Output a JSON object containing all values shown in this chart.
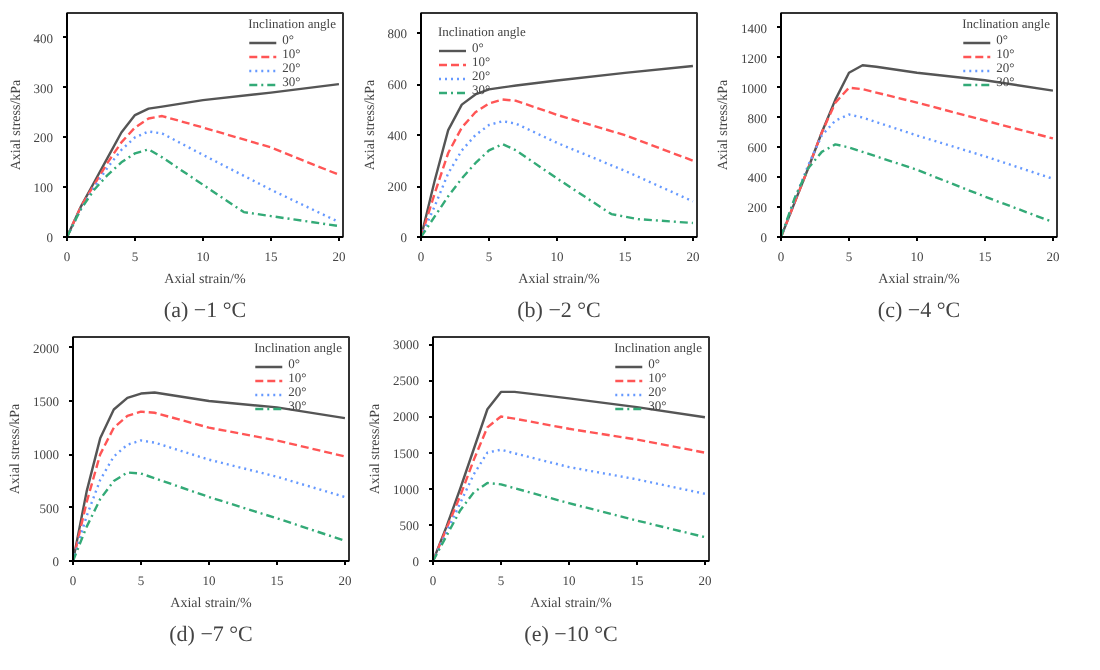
{
  "chart_data": [
    {
      "type": "line",
      "title": "(a) −1 °C",
      "xlabel": "Axial strain/%",
      "ylabel": "Axial stress/kPa",
      "legend_title": "Inclination angle",
      "legend": "top right",
      "grid": false,
      "xlim": [
        0,
        20.3
      ],
      "xticks": [
        0,
        5,
        10,
        15,
        20
      ],
      "ylim": [
        0,
        450
      ],
      "yticks": [
        0,
        100,
        200,
        300,
        400
      ],
      "series": [
        {
          "name": "0°",
          "color": "#555555",
          "line_style": "solid",
          "x": [
            0,
            1,
            2,
            3,
            4,
            5,
            6,
            7,
            10,
            15,
            20
          ],
          "values": [
            0,
            60,
            110,
            160,
            210,
            245,
            258,
            262,
            275,
            290,
            307
          ]
        },
        {
          "name": "10°",
          "color": "#ff5555",
          "line_style": "dashed",
          "x": [
            0,
            1,
            2,
            3,
            4,
            5,
            6,
            7,
            10,
            15,
            20
          ],
          "values": [
            0,
            60,
            105,
            150,
            190,
            220,
            238,
            243,
            220,
            180,
            125
          ]
        },
        {
          "name": "20°",
          "color": "#6699ff",
          "line_style": "dotted",
          "x": [
            0,
            1,
            2,
            3,
            4,
            5,
            6,
            7,
            10,
            15,
            20
          ],
          "values": [
            0,
            55,
            100,
            140,
            175,
            200,
            212,
            208,
            165,
            95,
            30
          ]
        },
        {
          "name": "30°",
          "color": "#33aa77",
          "line_style": "dashdot",
          "x": [
            0,
            1,
            2,
            3,
            4,
            5,
            6,
            7,
            10,
            13,
            15,
            20
          ],
          "values": [
            0,
            55,
            95,
            125,
            150,
            168,
            176,
            160,
            105,
            50,
            42,
            22
          ]
        }
      ]
    },
    {
      "type": "line",
      "title": "(b) −2 °C",
      "xlabel": "Axial strain/%",
      "ylabel": "Axial stress/kPa",
      "legend_title": "Inclination angle",
      "legend": "top left",
      "grid": false,
      "xlim": [
        0,
        20.3
      ],
      "xticks": [
        0,
        5,
        10,
        15,
        20
      ],
      "ylim": [
        0,
        880
      ],
      "yticks": [
        0,
        200,
        400,
        600,
        800
      ],
      "series": [
        {
          "name": "0°",
          "color": "#555555",
          "line_style": "solid",
          "x": [
            0,
            1,
            2,
            3,
            4,
            5,
            6,
            7,
            10,
            15,
            20
          ],
          "values": [
            0,
            220,
            420,
            520,
            560,
            580,
            588,
            595,
            615,
            645,
            672
          ]
        },
        {
          "name": "10°",
          "color": "#ff5555",
          "line_style": "dashed",
          "x": [
            0,
            1,
            2,
            3,
            4,
            5,
            6,
            7,
            10,
            15,
            20
          ],
          "values": [
            0,
            170,
            330,
            430,
            490,
            525,
            540,
            535,
            480,
            400,
            300
          ]
        },
        {
          "name": "20°",
          "color": "#6699ff",
          "line_style": "dotted",
          "x": [
            0,
            1,
            2,
            3,
            4,
            5,
            6,
            7,
            10,
            15,
            20
          ],
          "values": [
            0,
            120,
            250,
            340,
            400,
            440,
            455,
            445,
            370,
            260,
            140
          ]
        },
        {
          "name": "30°",
          "color": "#33aa77",
          "line_style": "dashdot",
          "x": [
            0,
            1,
            2,
            3,
            4,
            5,
            6,
            7,
            10,
            14,
            16,
            20
          ],
          "values": [
            0,
            80,
            160,
            230,
            290,
            340,
            365,
            340,
            230,
            90,
            70,
            55
          ]
        }
      ]
    },
    {
      "type": "line",
      "title": "(c) −4 °C",
      "xlabel": "Axial strain/%",
      "ylabel": "Axial stress/kPa",
      "legend_title": "Inclination angle",
      "legend": "top right",
      "grid": false,
      "xlim": [
        0,
        20.3
      ],
      "xticks": [
        0,
        5,
        10,
        15,
        20
      ],
      "ylim": [
        0,
        1500
      ],
      "yticks": [
        0,
        200,
        400,
        600,
        800,
        1000,
        1200,
        1400
      ],
      "series": [
        {
          "name": "0°",
          "color": "#555555",
          "line_style": "solid",
          "x": [
            0,
            1,
            2,
            3,
            4,
            5,
            6,
            7,
            10,
            15,
            20
          ],
          "values": [
            0,
            230,
            460,
            700,
            920,
            1100,
            1150,
            1140,
            1100,
            1050,
            980
          ]
        },
        {
          "name": "10°",
          "color": "#ff5555",
          "line_style": "dashed",
          "x": [
            0,
            1,
            2,
            3,
            4,
            5,
            6,
            10,
            15,
            20
          ],
          "values": [
            0,
            230,
            460,
            700,
            900,
            1000,
            990,
            900,
            780,
            660
          ]
        },
        {
          "name": "20°",
          "color": "#6699ff",
          "line_style": "dotted",
          "x": [
            0,
            1,
            2,
            3,
            4,
            5,
            6,
            10,
            15,
            20
          ],
          "values": [
            0,
            250,
            480,
            680,
            780,
            820,
            800,
            680,
            540,
            390
          ]
        },
        {
          "name": "30°",
          "color": "#33aa77",
          "line_style": "dashdot",
          "x": [
            0,
            1,
            2,
            3,
            4,
            5,
            10,
            15,
            20
          ],
          "values": [
            0,
            260,
            460,
            570,
            620,
            600,
            450,
            270,
            100
          ]
        }
      ]
    },
    {
      "type": "line",
      "title": "(d) −7 °C",
      "xlabel": "Axial strain/%",
      "ylabel": "Axial stress/kPa",
      "legend_title": "Inclination angle",
      "legend": "top right",
      "grid": false,
      "xlim": [
        0,
        20.3
      ],
      "xticks": [
        0,
        5,
        10,
        15,
        20
      ],
      "ylim": [
        0,
        2100
      ],
      "yticks": [
        0,
        500,
        1000,
        1500,
        2000
      ],
      "series": [
        {
          "name": "0°",
          "color": "#555555",
          "line_style": "solid",
          "x": [
            0,
            1,
            2,
            3,
            4,
            5,
            6,
            8,
            10,
            15,
            20
          ],
          "values": [
            0,
            650,
            1150,
            1420,
            1530,
            1570,
            1580,
            1540,
            1500,
            1440,
            1340
          ]
        },
        {
          "name": "10°",
          "color": "#ff5555",
          "line_style": "dashed",
          "x": [
            0,
            1,
            2,
            3,
            4,
            5,
            6,
            10,
            15,
            20
          ],
          "values": [
            0,
            550,
            1000,
            1250,
            1360,
            1400,
            1390,
            1250,
            1130,
            980
          ]
        },
        {
          "name": "20°",
          "color": "#6699ff",
          "line_style": "dotted",
          "x": [
            0,
            1,
            2,
            3,
            4,
            5,
            6,
            10,
            15,
            20
          ],
          "values": [
            0,
            420,
            760,
            980,
            1090,
            1130,
            1110,
            950,
            790,
            600
          ]
        },
        {
          "name": "30°",
          "color": "#33aa77",
          "line_style": "dashdot",
          "x": [
            0,
            1,
            2,
            3,
            4,
            5,
            10,
            15,
            20
          ],
          "values": [
            0,
            320,
            580,
            750,
            830,
            820,
            600,
            400,
            190
          ]
        }
      ]
    },
    {
      "type": "line",
      "title": "(e) −10 °C",
      "xlabel": "Axial strain/%",
      "ylabel": "Axial stress/kPa",
      "legend_title": "Inclination angle",
      "legend": "top right",
      "grid": false,
      "xlim": [
        0,
        20.3
      ],
      "xticks": [
        0,
        5,
        10,
        15,
        20
      ],
      "ylim": [
        0,
        3100
      ],
      "yticks": [
        0,
        500,
        1000,
        1500,
        2000,
        2500,
        3000
      ],
      "series": [
        {
          "name": "0°",
          "color": "#555555",
          "line_style": "solid",
          "x": [
            0,
            1,
            2,
            3,
            4,
            5,
            6,
            10,
            15,
            20
          ],
          "values": [
            0,
            480,
            1000,
            1550,
            2100,
            2340,
            2340,
            2250,
            2130,
            1990
          ]
        },
        {
          "name": "10°",
          "color": "#ff5555",
          "line_style": "dashed",
          "x": [
            0,
            1,
            2,
            3,
            4,
            5,
            6,
            10,
            15,
            20
          ],
          "values": [
            0,
            450,
            900,
            1400,
            1850,
            2000,
            1970,
            1830,
            1680,
            1500
          ]
        },
        {
          "name": "20°",
          "color": "#6699ff",
          "line_style": "dotted",
          "x": [
            0,
            1,
            2,
            3,
            4,
            5,
            6,
            10,
            15,
            20
          ],
          "values": [
            0,
            400,
            800,
            1200,
            1500,
            1540,
            1490,
            1300,
            1130,
            930
          ]
        },
        {
          "name": "30°",
          "color": "#33aa77",
          "line_style": "dashdot",
          "x": [
            0,
            1,
            2,
            3,
            4,
            5,
            10,
            15,
            20
          ],
          "values": [
            0,
            350,
            700,
            950,
            1080,
            1060,
            800,
            560,
            330
          ]
        }
      ]
    }
  ]
}
